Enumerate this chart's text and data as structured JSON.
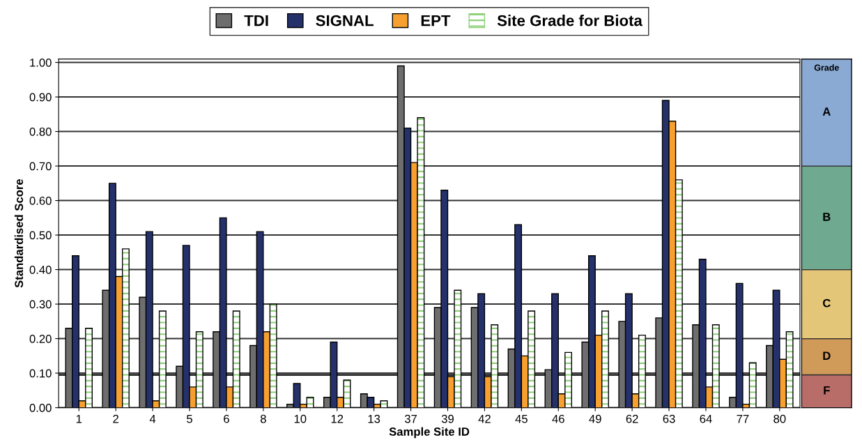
{
  "chart_data": [
    {
      "type": "bar",
      "xlabel": "Sample Site ID",
      "ylabel": "Standardised Score",
      "categories": [
        "1",
        "2",
        "4",
        "5",
        "6",
        "8",
        "10",
        "12",
        "13",
        "37",
        "39",
        "42",
        "45",
        "46",
        "49",
        "62",
        "63",
        "64",
        "77",
        "80"
      ],
      "series": [
        {
          "name": "TDI",
          "color": "#6e6e6e",
          "values": [
            0.23,
            0.34,
            0.32,
            0.12,
            0.22,
            0.18,
            0.01,
            0.03,
            0.04,
            0.99,
            0.29,
            0.29,
            0.17,
            0.11,
            0.19,
            0.25,
            0.26,
            0.24,
            0.03,
            0.18
          ]
        },
        {
          "name": "SIGNAL",
          "color": "#25316b",
          "values": [
            0.44,
            0.65,
            0.51,
            0.47,
            0.55,
            0.51,
            0.07,
            0.19,
            0.03,
            0.81,
            0.63,
            0.33,
            0.53,
            0.33,
            0.44,
            0.33,
            0.89,
            0.43,
            0.36,
            0.34
          ]
        },
        {
          "name": "EPT",
          "color": "#f7a030",
          "values": [
            0.02,
            0.38,
            0.02,
            0.06,
            0.06,
            0.22,
            0.01,
            0.03,
            0.01,
            0.71,
            0.09,
            0.09,
            0.15,
            0.04,
            0.21,
            0.04,
            0.83,
            0.06,
            0.01,
            0.14
          ]
        },
        {
          "name": "Site Grade for Biota",
          "color": "#8fd07a",
          "values": [
            0.23,
            0.46,
            0.28,
            0.22,
            0.28,
            0.3,
            0.03,
            0.08,
            0.02,
            0.84,
            0.34,
            0.24,
            0.28,
            0.16,
            0.28,
            0.21,
            0.66,
            0.24,
            0.13,
            0.22
          ]
        }
      ],
      "ylim": [
        0,
        1.01
      ],
      "yticks": [
        {
          "value": 0,
          "label": "0.00"
        },
        {
          "value": 0.1,
          "label": "0.10"
        },
        {
          "value": 0.2,
          "label": "0.20"
        },
        {
          "value": 0.3,
          "label": "0.30"
        },
        {
          "value": 0.4,
          "label": "0.40"
        },
        {
          "value": 0.5,
          "label": "0.50"
        },
        {
          "value": 0.6,
          "label": "0.60"
        },
        {
          "value": 0.7,
          "label": "0.70"
        },
        {
          "value": 0.8,
          "label": "0.80"
        },
        {
          "value": 0.9,
          "label": "0.90"
        },
        {
          "value": 1,
          "label": "1.00"
        }
      ],
      "grid": "y",
      "legend": "top",
      "ref_lines": [
        {
          "axis": "y",
          "value": 0.095,
          "color": "#000000"
        }
      ]
    },
    {
      "type": "bar",
      "title": "Grade",
      "stacked": true,
      "tick_labels": false,
      "categories": [
        null
      ],
      "series": [
        {
          "name": "F",
          "color": "#b86d69",
          "values": [
            0.095
          ]
        },
        {
          "name": "D",
          "color": "#d09a58",
          "values": [
            0.105
          ]
        },
        {
          "name": "C",
          "color": "#e4c679",
          "values": [
            0.2
          ]
        },
        {
          "name": "B",
          "color": "#6fa990",
          "values": [
            0.3
          ]
        },
        {
          "name": "A",
          "color": "#8aaad4",
          "values": [
            0.31
          ]
        }
      ],
      "ylim": [
        0,
        1.01
      ]
    }
  ]
}
